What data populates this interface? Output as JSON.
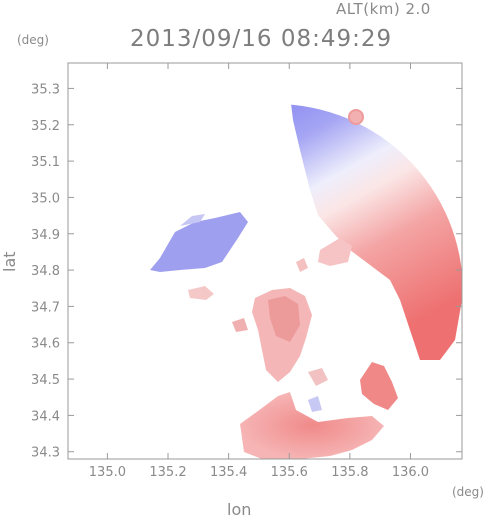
{
  "chart_data": {
    "type": "heatmap",
    "title": "2013/09/16 08:49:29",
    "subtitle": "ALT(km) 2.0",
    "xlabel": "lon",
    "ylabel": "lat",
    "x_unit": "(deg)",
    "y_unit": "(deg)",
    "xlim": [
      134.87,
      136.17
    ],
    "ylim": [
      34.28,
      35.37
    ],
    "x_ticks": [
      "135.0",
      "135.2",
      "135.4",
      "135.6",
      "135.8",
      "136.0"
    ],
    "y_ticks": [
      "34.3",
      "34.4",
      "34.5",
      "34.6",
      "34.7",
      "34.8",
      "34.9",
      "35.0",
      "35.1",
      "35.2",
      "35.3"
    ],
    "colormap": {
      "negative": "#7070ee",
      "zero": "#ffffff",
      "positive": "#ee6a6a"
    },
    "regions": [
      {
        "name": "radar-sweep",
        "values": "blue north, white center, red south-east"
      },
      {
        "name": "west-echo",
        "lon": 135.2,
        "lat": 34.82,
        "sign": "negative"
      },
      {
        "name": "central-echo",
        "lon": 135.6,
        "lat": 34.62,
        "sign": "positive"
      },
      {
        "name": "south-echo",
        "lon": 135.65,
        "lat": 34.33,
        "sign": "positive"
      },
      {
        "name": "east-echo",
        "lon": 135.85,
        "lat": 34.47,
        "sign": "positive"
      }
    ]
  }
}
